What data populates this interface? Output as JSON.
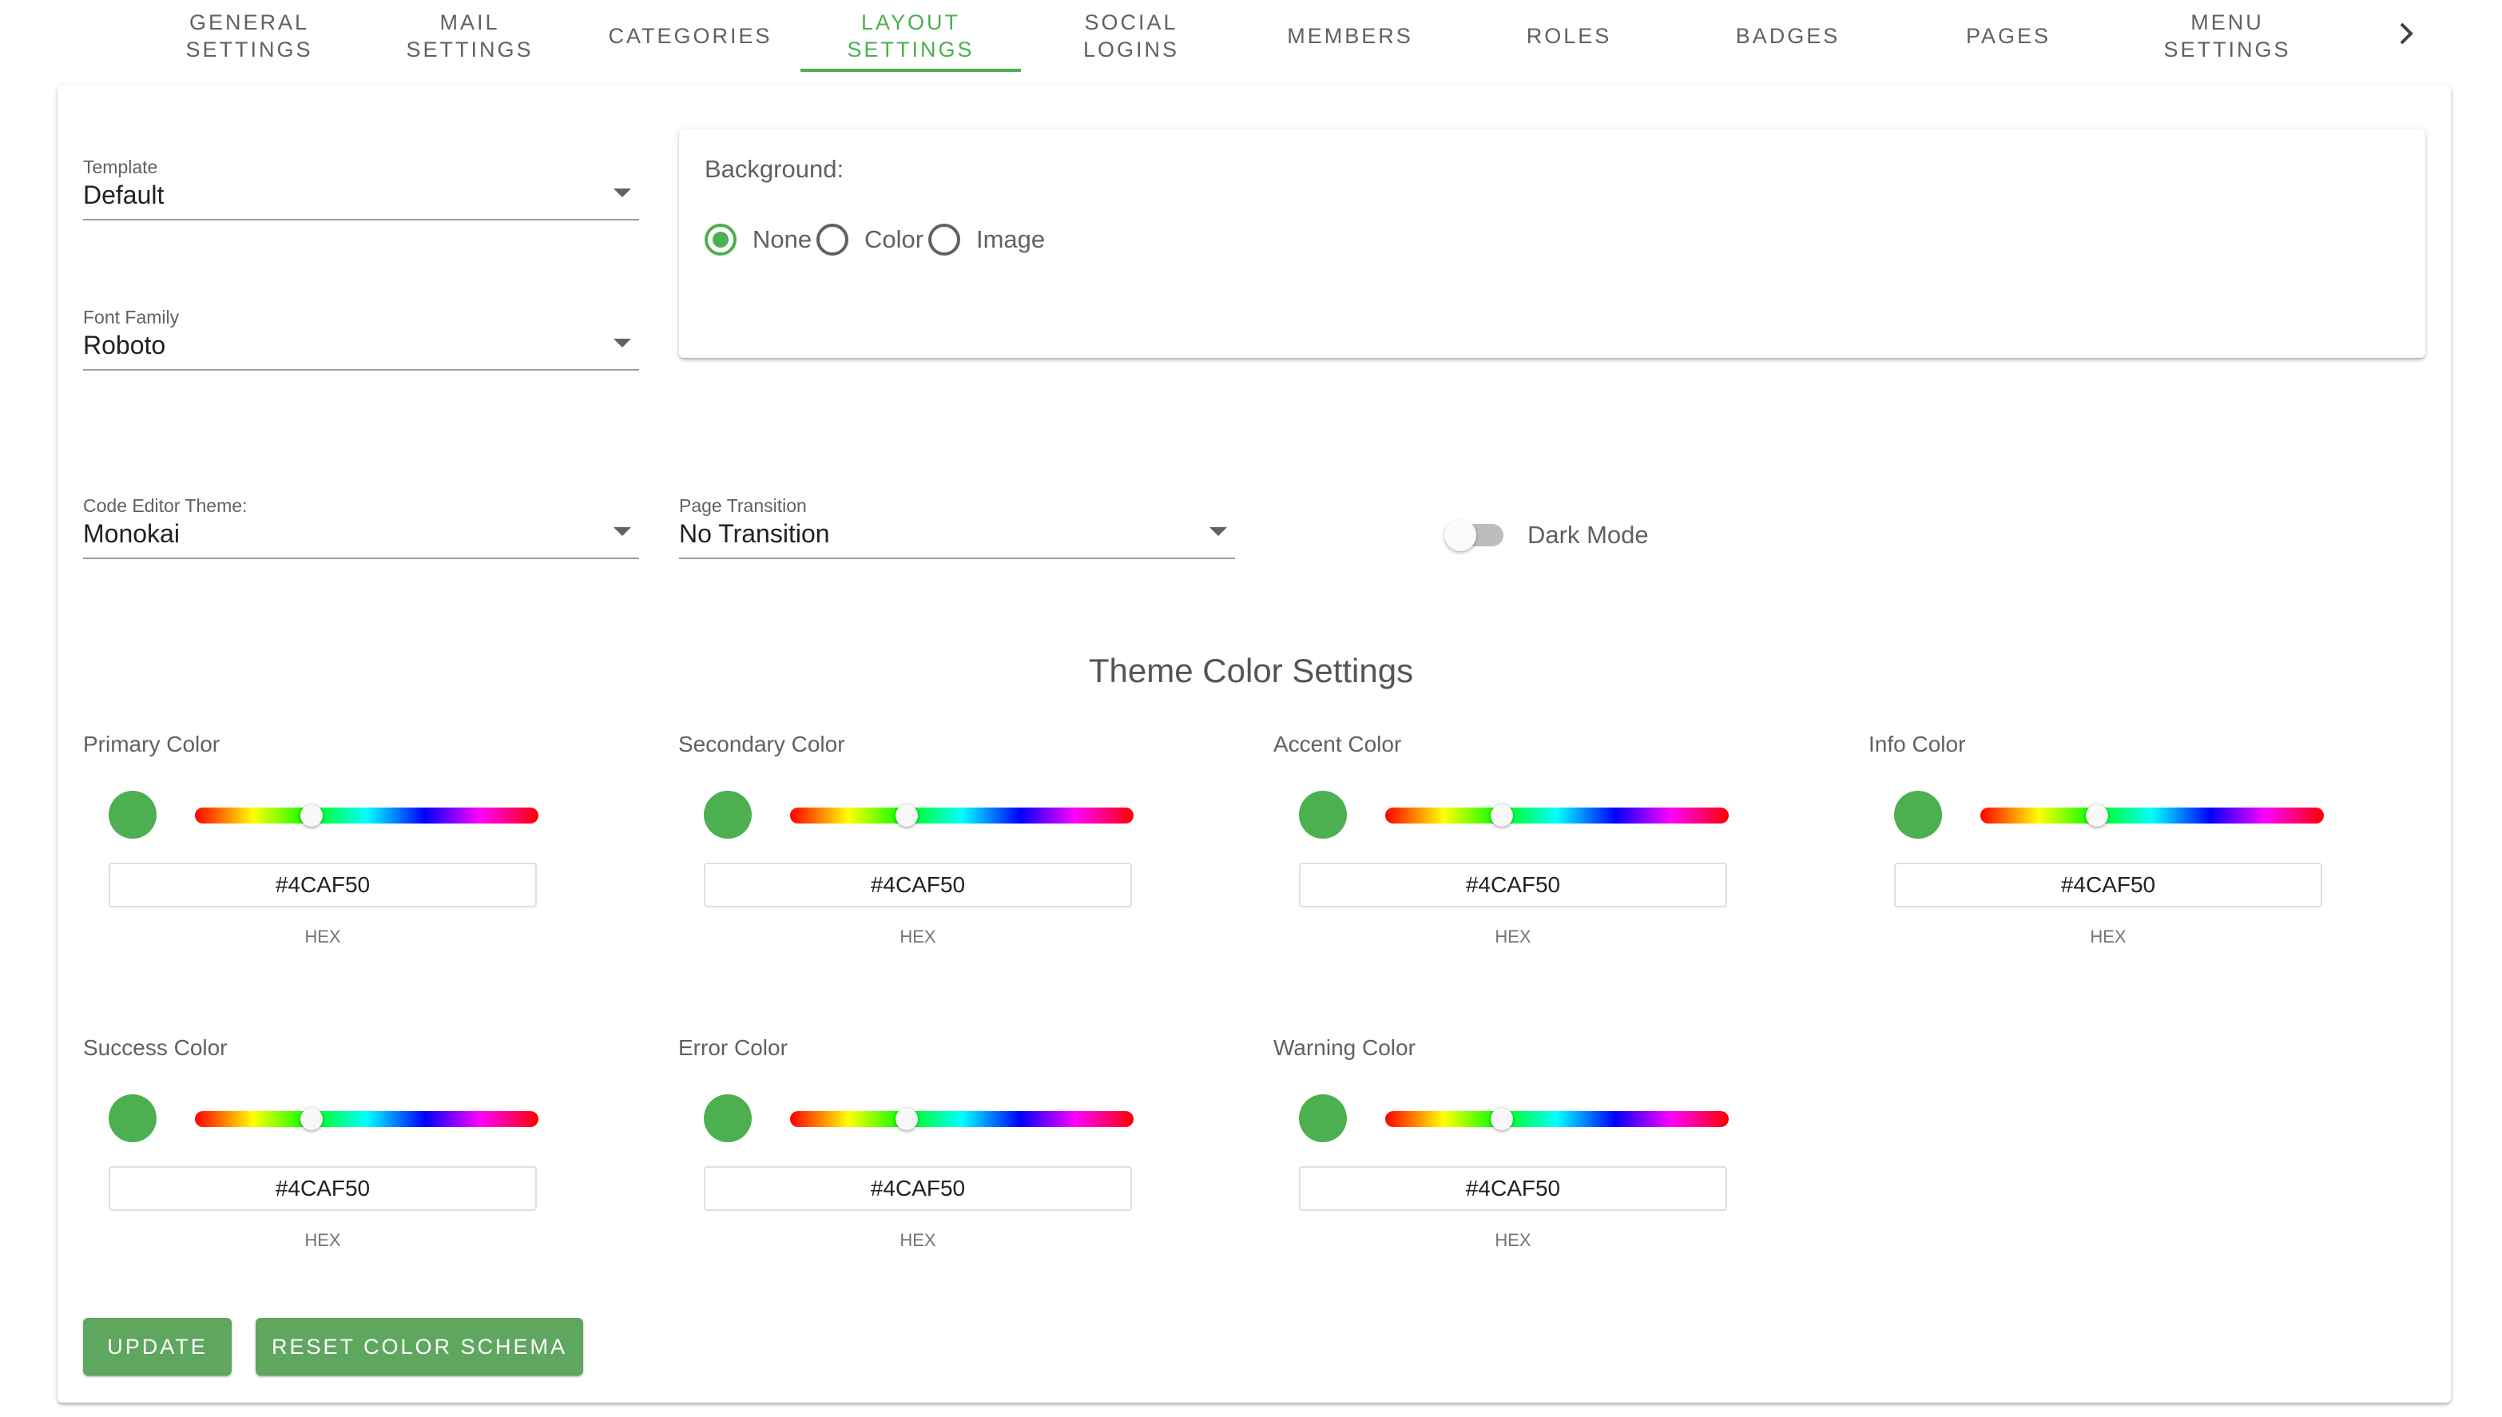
{
  "tabs": [
    {
      "label": "GENERAL\nSETTINGS"
    },
    {
      "label": "MAIL\nSETTINGS"
    },
    {
      "label": "CATEGORIES"
    },
    {
      "label": "LAYOUT\nSETTINGS"
    },
    {
      "label": "SOCIAL\nLOGINS"
    },
    {
      "label": "MEMBERS"
    },
    {
      "label": "ROLES"
    },
    {
      "label": "BADGES"
    },
    {
      "label": "PAGES"
    },
    {
      "label": "MENU\nSETTINGS"
    }
  ],
  "active_tab": "LAYOUT SETTINGS",
  "template": {
    "label": "Template",
    "value": "Default"
  },
  "font_family": {
    "label": "Font Family",
    "value": "Roboto"
  },
  "code_editor_theme": {
    "label": "Code Editor Theme:",
    "value": "Monokai"
  },
  "page_transition": {
    "label": "Page Transition",
    "value": "No Transition"
  },
  "background": {
    "title": "Background:",
    "options": [
      "None",
      "Color",
      "Image"
    ],
    "selected": "None"
  },
  "dark_mode": {
    "label": "Dark Mode",
    "enabled": false
  },
  "theme": {
    "title": "Theme Color Settings",
    "hex_label": "HEX",
    "colors": [
      {
        "label": "Primary Color",
        "hex": "#4CAF50",
        "hue_fraction": 0.34
      },
      {
        "label": "Secondary Color",
        "hex": "#4CAF50",
        "hue_fraction": 0.34
      },
      {
        "label": "Accent Color",
        "hex": "#4CAF50",
        "hue_fraction": 0.34
      },
      {
        "label": "Info Color",
        "hex": "#4CAF50",
        "hue_fraction": 0.34
      },
      {
        "label": "Success Color",
        "hex": "#4CAF50",
        "hue_fraction": 0.34
      },
      {
        "label": "Error Color",
        "hex": "#4CAF50",
        "hue_fraction": 0.34
      },
      {
        "label": "Warning Color",
        "hex": "#4CAF50",
        "hue_fraction": 0.34
      }
    ]
  },
  "buttons": {
    "update": "UPDATE",
    "reset": "RESET COLOR SCHEMA"
  },
  "accent_color": "#4caf50",
  "icons": {
    "tab_next": "chevron-right-icon",
    "select_caret": "caret-down-icon"
  }
}
